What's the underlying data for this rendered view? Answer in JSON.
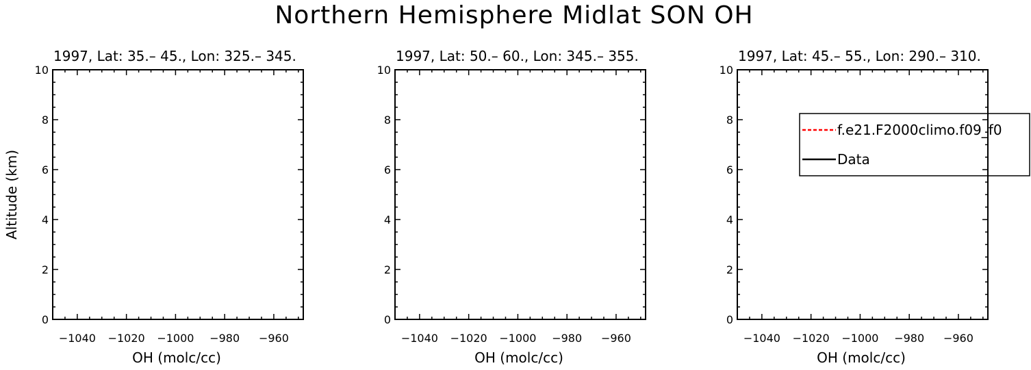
{
  "figure": {
    "title": "Northern Hemisphere Midlat SON OH",
    "background": "#ffffff"
  },
  "chart_data": [
    {
      "type": "line",
      "title": "1997, Lat: 35.– 45., Lon: 325.– 345.",
      "xlabel": "OH (molc/cc)",
      "ylabel": "Altitude (km)",
      "xlim": [
        -1050,
        -948
      ],
      "ylim": [
        0,
        10
      ],
      "xticks": [
        -1040,
        -1020,
        -1000,
        -980,
        -960
      ],
      "xtick_labels": [
        "−1040",
        "−1020",
        "−1000",
        "−980",
        "−960"
      ],
      "yticks": [
        0,
        2,
        4,
        6,
        8,
        10
      ],
      "ytick_labels": [
        "0",
        "2",
        "4",
        "6",
        "8",
        "10"
      ],
      "series": [],
      "grid": false
    },
    {
      "type": "line",
      "title": "1997, Lat: 50.– 60., Lon: 345.– 355.",
      "xlabel": "OH (molc/cc)",
      "ylabel": "",
      "xlim": [
        -1050,
        -948
      ],
      "ylim": [
        0,
        10
      ],
      "xticks": [
        -1040,
        -1020,
        -1000,
        -980,
        -960
      ],
      "xtick_labels": [
        "−1040",
        "−1020",
        "−1000",
        "−980",
        "−960"
      ],
      "yticks": [
        0,
        2,
        4,
        6,
        8,
        10
      ],
      "ytick_labels": [
        "0",
        "2",
        "4",
        "6",
        "8",
        "10"
      ],
      "series": [],
      "grid": false
    },
    {
      "type": "line",
      "title": "1997, Lat: 45.– 55., Lon: 290.– 310.",
      "xlabel": "OH (molc/cc)",
      "ylabel": "",
      "xlim": [
        -1050,
        -948
      ],
      "ylim": [
        0,
        10
      ],
      "xticks": [
        -1040,
        -1020,
        -1000,
        -980,
        -960
      ],
      "xtick_labels": [
        "−1040",
        "−1020",
        "−1000",
        "−980",
        "−960"
      ],
      "yticks": [
        0,
        2,
        4,
        6,
        8,
        10
      ],
      "ytick_labels": [
        "0",
        "2",
        "4",
        "6",
        "8",
        "10"
      ],
      "series": [],
      "grid": false,
      "legend": {
        "placement": "top-right",
        "entries": [
          {
            "label": "f.e21.F2000climo.f09_f0",
            "color": "#ff0000",
            "style": "dashed"
          },
          {
            "label": "Data",
            "color": "#000000",
            "style": "solid"
          }
        ]
      }
    }
  ]
}
